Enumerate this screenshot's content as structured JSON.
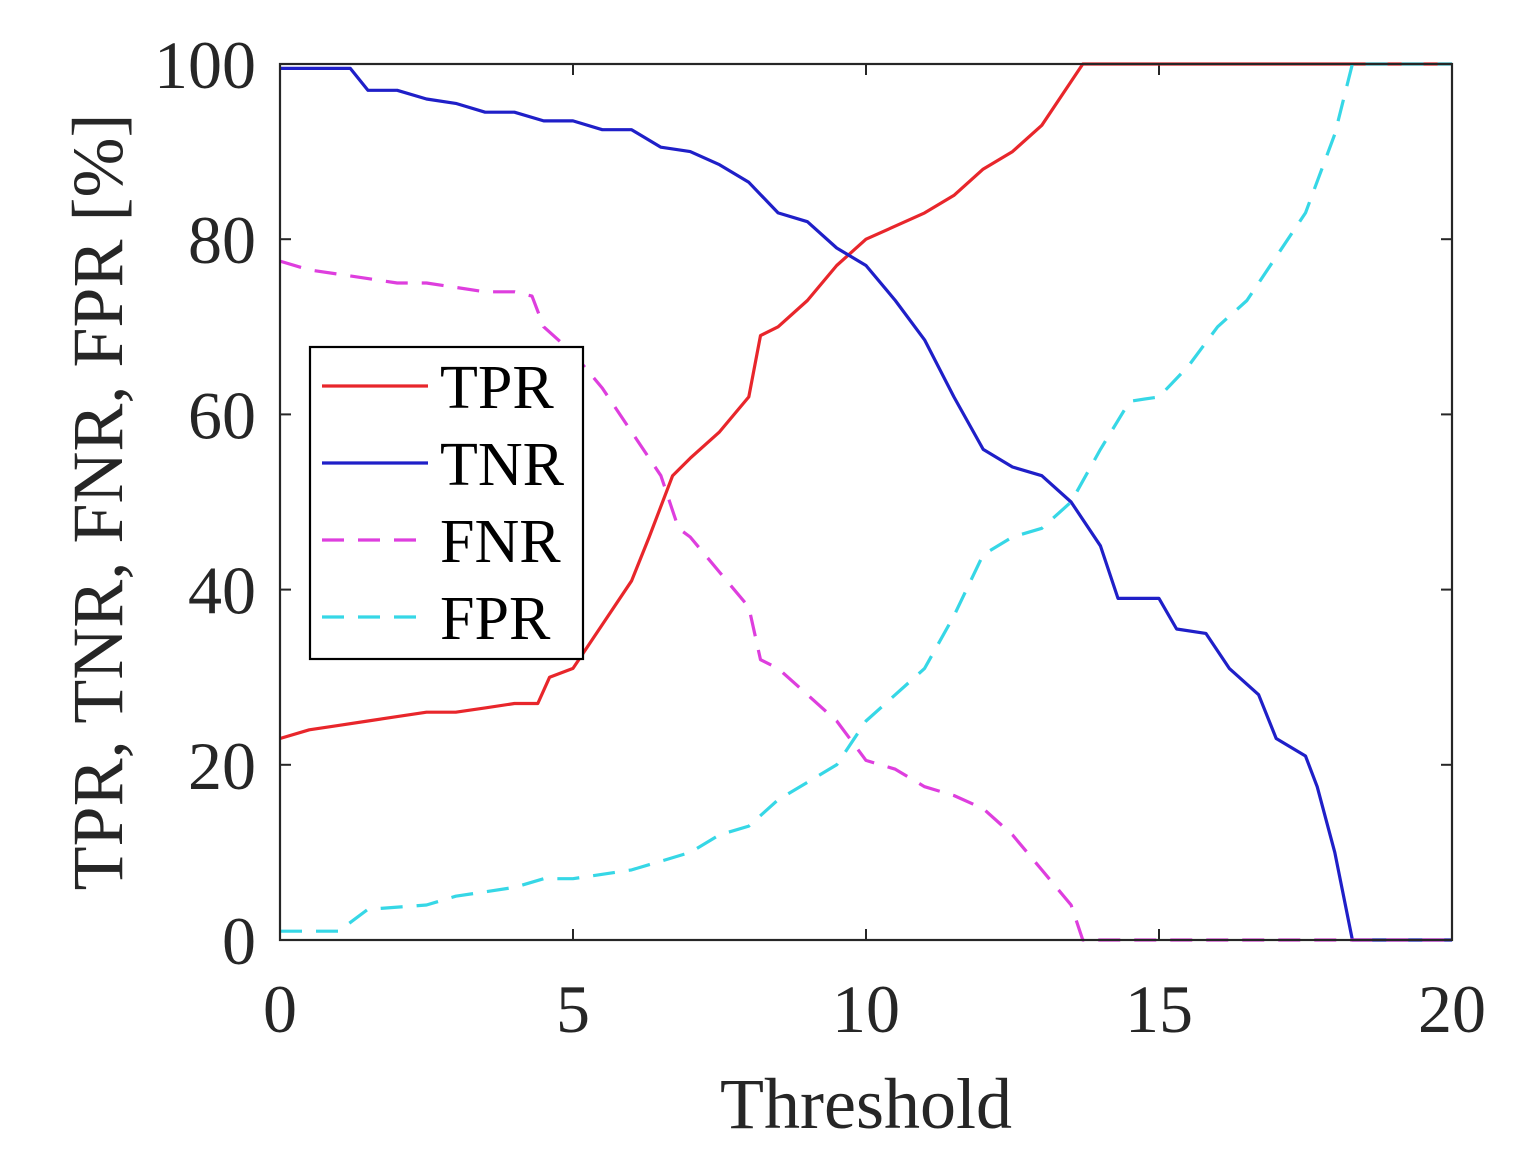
{
  "chart_data": {
    "type": "line",
    "xlabel": "Threshold",
    "ylabel": "TPR, TNR, FNR, FPR [%]",
    "xlim": [
      0,
      20
    ],
    "ylim": [
      0,
      100
    ],
    "xticks": [
      0,
      5,
      10,
      15,
      20
    ],
    "yticks": [
      0,
      20,
      40,
      60,
      80,
      100
    ],
    "grid": false,
    "legend_position": "center-left",
    "series": [
      {
        "name": "TPR",
        "color": "#e8262b",
        "style": "solid",
        "points": [
          [
            0,
            23
          ],
          [
            0.5,
            24
          ],
          [
            1,
            24.5
          ],
          [
            1.5,
            25
          ],
          [
            2,
            25.5
          ],
          [
            2.5,
            26
          ],
          [
            3,
            26
          ],
          [
            3.5,
            26.5
          ],
          [
            4,
            27
          ],
          [
            4.4,
            27
          ],
          [
            4.6,
            30
          ],
          [
            5,
            31
          ],
          [
            5.5,
            36
          ],
          [
            6,
            41
          ],
          [
            6.3,
            46
          ],
          [
            6.7,
            53
          ],
          [
            7,
            55
          ],
          [
            7.5,
            58
          ],
          [
            8,
            62
          ],
          [
            8.2,
            69
          ],
          [
            8.5,
            70
          ],
          [
            9,
            73
          ],
          [
            9.5,
            77
          ],
          [
            10,
            80
          ],
          [
            10.5,
            81.5
          ],
          [
            11,
            83
          ],
          [
            11.5,
            85
          ],
          [
            12,
            88
          ],
          [
            12.5,
            90
          ],
          [
            13,
            93
          ],
          [
            13.5,
            98
          ],
          [
            13.7,
            100
          ],
          [
            20,
            100
          ]
        ]
      },
      {
        "name": "TNR",
        "color": "#1f1fc8",
        "style": "solid",
        "points": [
          [
            0,
            99.5
          ],
          [
            1.2,
            99.5
          ],
          [
            1.5,
            97
          ],
          [
            2,
            97
          ],
          [
            2.5,
            96
          ],
          [
            3,
            95.5
          ],
          [
            3.5,
            94.5
          ],
          [
            4,
            94.5
          ],
          [
            4.5,
            93.5
          ],
          [
            5,
            93.5
          ],
          [
            5.5,
            92.5
          ],
          [
            6,
            92.5
          ],
          [
            6.5,
            90.5
          ],
          [
            7,
            90
          ],
          [
            7.5,
            88.5
          ],
          [
            8,
            86.5
          ],
          [
            8.5,
            83
          ],
          [
            9,
            82
          ],
          [
            9.5,
            79
          ],
          [
            10,
            77
          ],
          [
            10.5,
            73
          ],
          [
            11,
            68.5
          ],
          [
            11.5,
            62
          ],
          [
            12,
            56
          ],
          [
            12.5,
            54
          ],
          [
            13,
            53
          ],
          [
            13.5,
            50
          ],
          [
            14,
            45
          ],
          [
            14.3,
            39
          ],
          [
            15,
            39
          ],
          [
            15.3,
            35.5
          ],
          [
            15.8,
            35
          ],
          [
            16.2,
            31
          ],
          [
            16.7,
            28
          ],
          [
            17,
            23
          ],
          [
            17.5,
            21
          ],
          [
            17.7,
            17.5
          ],
          [
            18,
            10
          ],
          [
            18.3,
            0
          ],
          [
            20,
            0
          ]
        ]
      },
      {
        "name": "FNR",
        "color": "#de3ede",
        "style": "dashed",
        "points": [
          [
            0,
            77.5
          ],
          [
            0.5,
            76.5
          ],
          [
            1,
            76
          ],
          [
            1.5,
            75.5
          ],
          [
            2,
            75
          ],
          [
            2.5,
            75
          ],
          [
            3,
            74.5
          ],
          [
            3.5,
            74
          ],
          [
            4,
            74
          ],
          [
            4.3,
            73.5
          ],
          [
            4.5,
            70
          ],
          [
            5,
            67
          ],
          [
            5.5,
            63
          ],
          [
            6,
            58
          ],
          [
            6.5,
            53
          ],
          [
            6.8,
            47
          ],
          [
            7,
            46
          ],
          [
            7.5,
            42
          ],
          [
            8,
            38
          ],
          [
            8.2,
            32
          ],
          [
            8.5,
            31
          ],
          [
            9,
            28
          ],
          [
            9.5,
            25
          ],
          [
            10,
            20.5
          ],
          [
            10.5,
            19.5
          ],
          [
            11,
            17.5
          ],
          [
            11.5,
            16.5
          ],
          [
            12,
            15
          ],
          [
            12.5,
            12
          ],
          [
            13,
            8
          ],
          [
            13.5,
            4
          ],
          [
            13.7,
            0
          ],
          [
            20,
            0
          ]
        ]
      },
      {
        "name": "FPR",
        "color": "#36d7e6",
        "style": "dashed",
        "points": [
          [
            0,
            1
          ],
          [
            1,
            1
          ],
          [
            1.5,
            3.5
          ],
          [
            2.5,
            4
          ],
          [
            3,
            5
          ],
          [
            4,
            6
          ],
          [
            4.5,
            7
          ],
          [
            5,
            7
          ],
          [
            5.5,
            7.5
          ],
          [
            6,
            8
          ],
          [
            6.5,
            9
          ],
          [
            7,
            10
          ],
          [
            7.5,
            12
          ],
          [
            8,
            13
          ],
          [
            8.5,
            16
          ],
          [
            9,
            18
          ],
          [
            9.5,
            20
          ],
          [
            10,
            25
          ],
          [
            10.5,
            28
          ],
          [
            11,
            31
          ],
          [
            11.5,
            37
          ],
          [
            12,
            44
          ],
          [
            12.5,
            46
          ],
          [
            13,
            47
          ],
          [
            13.5,
            50
          ],
          [
            14,
            56
          ],
          [
            14.5,
            61.5
          ],
          [
            15,
            62
          ],
          [
            15.5,
            65.5
          ],
          [
            16,
            70
          ],
          [
            16.5,
            73
          ],
          [
            17,
            78
          ],
          [
            17.5,
            83
          ],
          [
            18,
            92
          ],
          [
            18.3,
            100
          ],
          [
            20,
            100
          ]
        ]
      }
    ]
  }
}
